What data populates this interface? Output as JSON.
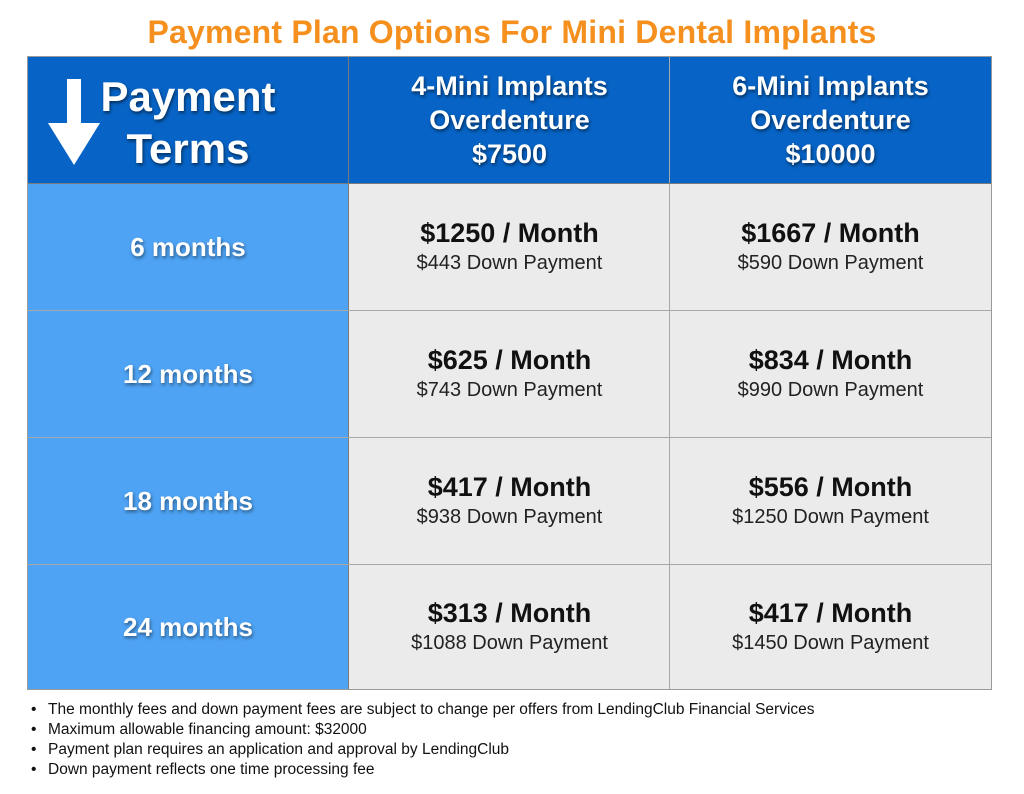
{
  "title": "Payment Plan Options For Mini Dental Implants",
  "header": {
    "payment_terms_line1": "Payment",
    "payment_terms_line2": "Terms",
    "columns": [
      {
        "line1": "4-Mini Implants",
        "line2": "Overdenture",
        "price": "$7500"
      },
      {
        "line1": "6-Mini Implants",
        "line2": "Overdenture",
        "price": "$10000"
      }
    ]
  },
  "rows": [
    {
      "term": "6 months",
      "cells": [
        {
          "monthly": "$1250 / Month",
          "down": "$443 Down Payment"
        },
        {
          "monthly": "$1667 / Month",
          "down": "$590 Down Payment"
        }
      ]
    },
    {
      "term": "12 months",
      "cells": [
        {
          "monthly": "$625 / Month",
          "down": "$743 Down Payment"
        },
        {
          "monthly": "$834 / Month",
          "down": "$990 Down Payment"
        }
      ]
    },
    {
      "term": "18 months",
      "cells": [
        {
          "monthly": "$417 / Month",
          "down": "$938 Down Payment"
        },
        {
          "monthly": "$556 / Month",
          "down": "$1250 Down Payment"
        }
      ]
    },
    {
      "term": "24 months",
      "cells": [
        {
          "monthly": "$313 / Month",
          "down": "$1088 Down Payment"
        },
        {
          "monthly": "$417 / Month",
          "down": "$1450 Down Payment"
        }
      ]
    }
  ],
  "notes": [
    "The monthly fees and down payment fees are subject to change per offers from LendingClub Financial Services",
    "Maximum allowable financing amount: $32000",
    "Payment plan requires an application and approval by LendingClub",
    "Down payment reflects one time processing fee"
  ],
  "bullet": "•",
  "colors": {
    "title": "#f5901e",
    "header_bg": "#0764c6",
    "term_bg": "#4ea3f4",
    "value_bg": "#ebebeb"
  }
}
